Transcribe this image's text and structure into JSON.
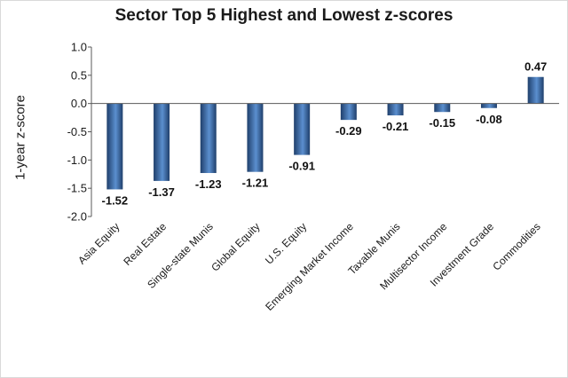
{
  "chart_data": {
    "type": "bar",
    "title": "Sector Top 5 Highest and Lowest z-scores",
    "xlabel": "",
    "ylabel": "1-year z-score",
    "ylim": [
      -2.0,
      1.0
    ],
    "yticks": [
      "1.0",
      "0.5",
      "0.0",
      "-0.5",
      "-1.0",
      "-1.5",
      "-2.0"
    ],
    "grid": false,
    "legend": "none",
    "categories": [
      "Asia Equity",
      "Real Estate",
      "Single-state Munis",
      "Global Equity",
      "U.S. Equity",
      "Emerging Market Income",
      "Taxable Munis",
      "Multisector Income",
      "Investment Grade",
      "Commodities"
    ],
    "values": [
      -1.52,
      -1.37,
      -1.23,
      -1.21,
      -0.91,
      -0.29,
      -0.21,
      -0.15,
      -0.08,
      0.47
    ],
    "data_labels": [
      "-1.52",
      "-1.37",
      "-1.23",
      "-1.21",
      "-0.91",
      "-0.29",
      "-0.21",
      "-0.15",
      "-0.08",
      "0.47"
    ],
    "colors": {
      "bar_dark": "#1f3f6b",
      "bar_light": "#5b8fcf",
      "axis": "#595959"
    }
  }
}
